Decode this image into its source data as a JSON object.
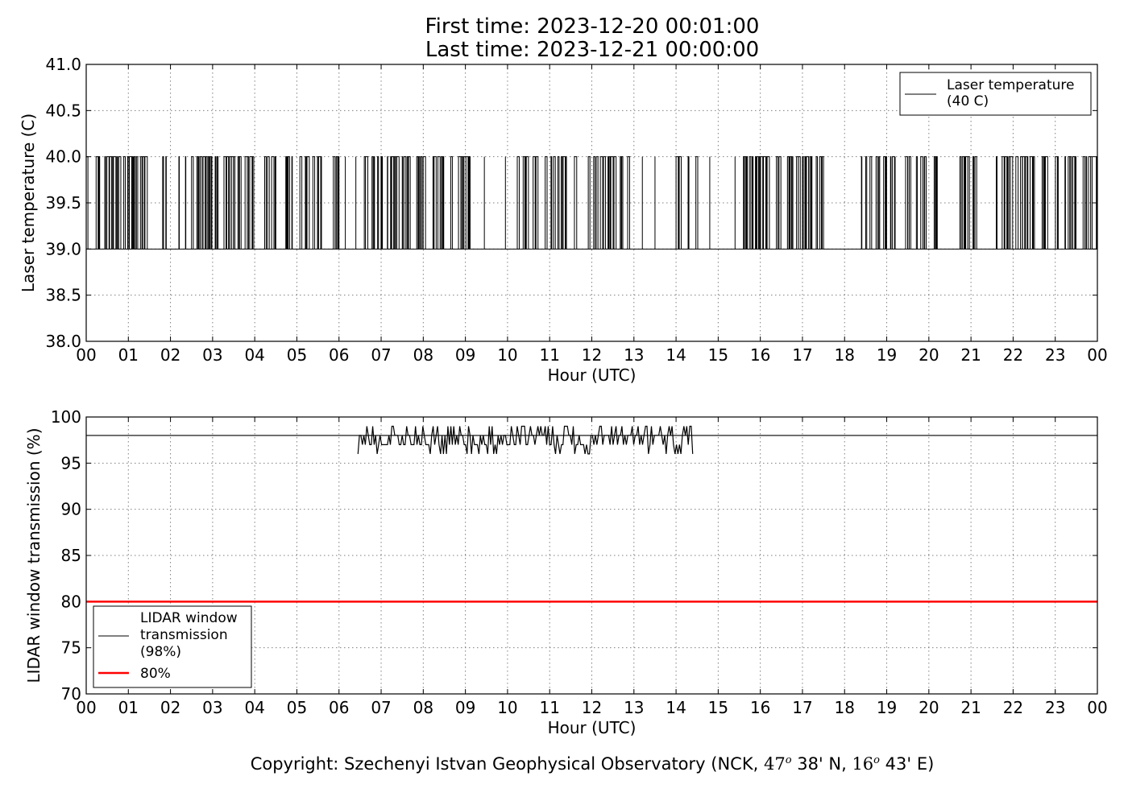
{
  "header": {
    "first_time": "First time: 2023-12-20 00:01:00",
    "last_time": "Last time: 2023-12-21 00:00:00"
  },
  "footer": {
    "prefix": "Copyright: Szechenyi Istvan Geophysical Observatory (NCK, ",
    "lat_deg": "47",
    "lat_min": " 38' N, ",
    "lon_deg": "16",
    "lon_min": " 43' E)",
    "degree_mark": "o"
  },
  "colors": {
    "series": "#000000",
    "threshold": "#ff0000",
    "grid": "#7f7f7f"
  },
  "chart_data": [
    {
      "type": "line",
      "ylabel": "Laser temperature (C)",
      "xlabel": "Hour (UTC)",
      "xlim": [
        0,
        24
      ],
      "ylim": [
        38.0,
        41.0
      ],
      "x_ticks": [
        "00",
        "01",
        "02",
        "03",
        "04",
        "05",
        "06",
        "07",
        "08",
        "09",
        "10",
        "11",
        "12",
        "13",
        "14",
        "15",
        "16",
        "17",
        "18",
        "19",
        "20",
        "21",
        "22",
        "23",
        "00"
      ],
      "y_ticks": [
        "38.0",
        "38.5",
        "39.0",
        "39.5",
        "40.0",
        "40.5",
        "41.0"
      ],
      "grid": true,
      "legend_position": "top-right",
      "series": [
        {
          "name": "Laser temperature\n(40 C)",
          "values_levels": [
            39.0,
            40.0
          ],
          "dense_switching_hours": [
            [
              0.0,
              1.9
            ],
            [
              2.2,
              4.4
            ],
            [
              4.4,
              6.0
            ],
            [
              6.6,
              9.2
            ],
            [
              10.2,
              12.9
            ],
            [
              14.0,
              14.6
            ],
            [
              15.6,
              17.5
            ],
            [
              18.4,
              20.2
            ],
            [
              20.6,
              21.3
            ],
            [
              21.6,
              24.0
            ]
          ],
          "isolated_switch_hours": [
            6.15,
            6.4,
            9.45,
            9.95,
            13.2,
            13.5,
            14.8,
            15.4,
            19.2,
            19.5,
            19.9
          ]
        }
      ]
    },
    {
      "type": "line",
      "ylabel": "LIDAR window transmission (%)",
      "xlabel": "Hour (UTC)",
      "xlim": [
        0,
        24
      ],
      "ylim": [
        70,
        100
      ],
      "x_ticks": [
        "00",
        "01",
        "02",
        "03",
        "04",
        "05",
        "06",
        "07",
        "08",
        "09",
        "10",
        "11",
        "12",
        "13",
        "14",
        "15",
        "16",
        "17",
        "18",
        "19",
        "20",
        "21",
        "22",
        "23",
        "00"
      ],
      "y_ticks": [
        "70",
        "75",
        "80",
        "85",
        "90",
        "95",
        "100"
      ],
      "grid": true,
      "legend_position": "lower-left",
      "series": [
        {
          "name": "LIDAR window\ntransmission\n(98%)",
          "baseline": 98,
          "noisy_segment_hours": [
            6.45,
            14.4
          ],
          "noisy_range": [
            96,
            99
          ]
        },
        {
          "name": "80%",
          "constant": 80
        }
      ]
    }
  ]
}
